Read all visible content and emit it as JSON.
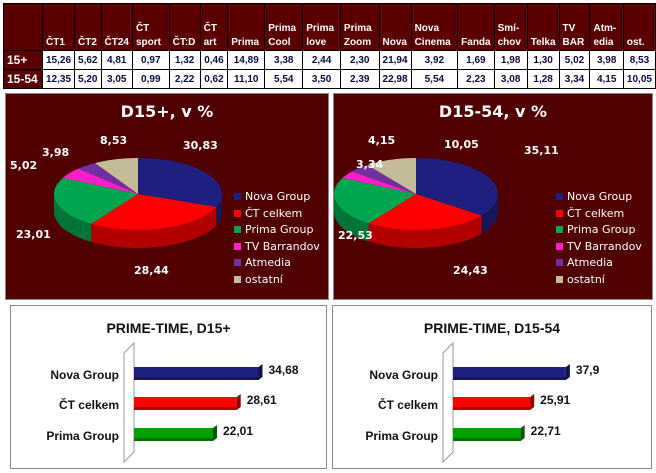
{
  "table": {
    "headers": [
      "",
      "ČT1",
      "ČT2",
      "ČT24",
      "ČT sport",
      "ČT:D",
      "ČT art",
      "Prima",
      "Prima Cool",
      "Prima love",
      "Prima Zoom",
      "Nova",
      "Nova Cinema",
      "Fanda",
      "Smí-chov",
      "Telka",
      "TV BAR",
      "Atm-edia",
      "ost."
    ],
    "rows": [
      {
        "label": "15+",
        "values": [
          "15,26",
          "5,62",
          "4,81",
          "0,97",
          "1,32",
          "0,46",
          "14,89",
          "3,38",
          "2,44",
          "2,30",
          "21,94",
          "3,92",
          "1,69",
          "1,98",
          "1,30",
          "5,02",
          "3,98",
          "8,53"
        ]
      },
      {
        "label": "15-54",
        "values": [
          "12,35",
          "5,20",
          "3,05",
          "0,99",
          "2,22",
          "0,62",
          "11,10",
          "5,54",
          "3,50",
          "2,39",
          "22,98",
          "5,54",
          "2,23",
          "3,08",
          "1,28",
          "3,34",
          "4,15",
          "10,05"
        ]
      }
    ]
  },
  "chart_data": [
    {
      "type": "pie",
      "title": "D15+, v %",
      "categories": [
        "Nova Group",
        "ČT celkem",
        "Prima Group",
        "TV Barrandov",
        "Atmedia",
        "ostatní"
      ],
      "values": [
        30.83,
        28.44,
        23.01,
        5.02,
        3.98,
        8.53
      ],
      "labels": [
        "30,83",
        "28,44",
        "23,01",
        "5,02",
        "3,98",
        "8,53"
      ],
      "colors": [
        "#1f1f80",
        "#ff0000",
        "#00a550",
        "#ff1ec8",
        "#7030a0",
        "#c4bc98"
      ],
      "legend": "right",
      "style": "3d"
    },
    {
      "type": "pie",
      "title": "D15-54, v %",
      "categories": [
        "Nova Group",
        "ČT celkem",
        "Prima Group",
        "TV Barrandov",
        "Atmedia",
        "ostatní"
      ],
      "values": [
        35.11,
        24.43,
        22.53,
        3.34,
        4.15,
        10.05
      ],
      "labels": [
        "35,11",
        "24,43",
        "22,53",
        "3,34",
        "4,15",
        "10,05"
      ],
      "colors": [
        "#1f1f80",
        "#ff0000",
        "#00a550",
        "#ff1ec8",
        "#7030a0",
        "#c4bc98"
      ],
      "legend": "right",
      "style": "3d"
    },
    {
      "type": "bar",
      "orientation": "horizontal",
      "title": "PRIME-TIME, D15+",
      "categories": [
        "Nova Group",
        "ČT celkem",
        "Prima Group"
      ],
      "values": [
        34.68,
        28.61,
        22.01
      ],
      "labels": [
        "34,68",
        "28,61",
        "22,01"
      ],
      "colors": [
        "#1f1f80",
        "#ff0000",
        "#00a000"
      ],
      "xlim": [
        0,
        39
      ]
    },
    {
      "type": "bar",
      "orientation": "horizontal",
      "title": "PRIME-TIME, D15-54",
      "categories": [
        "Nova Group",
        "ČT celkem",
        "Prima Group"
      ],
      "values": [
        37.9,
        25.91,
        22.71
      ],
      "labels": [
        "37,9",
        "25,91",
        "22,71"
      ],
      "colors": [
        "#1f1f80",
        "#ff0000",
        "#00a000"
      ],
      "xlim": [
        0,
        47
      ]
    }
  ]
}
